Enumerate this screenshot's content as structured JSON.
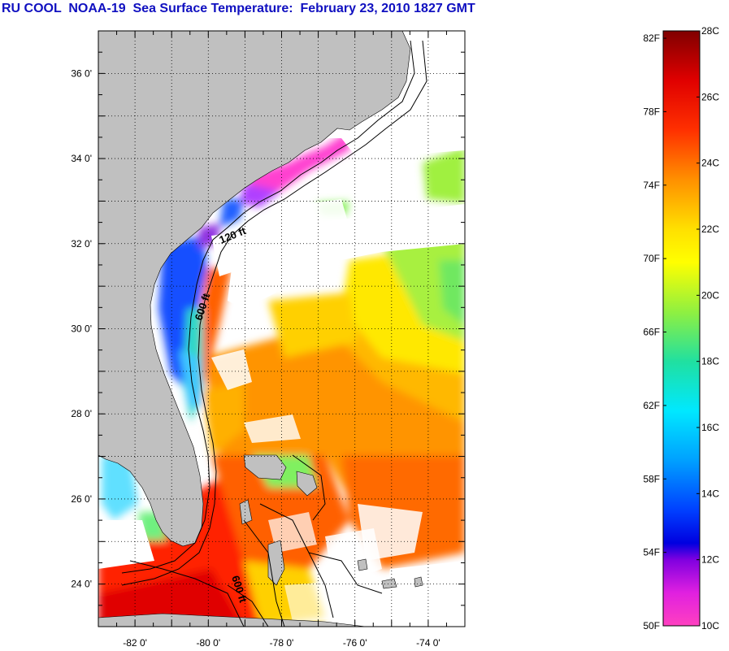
{
  "title": "RU COOL  NOAA-19  Sea Surface Temperature:  February 23, 2010 1827 GMT",
  "map": {
    "lon_range": [
      -83,
      -73
    ],
    "lat_range": [
      23,
      37
    ],
    "lat_ticks": [
      {
        "value": 36,
        "label": "36 0'"
      },
      {
        "value": 34,
        "label": "34 0'"
      },
      {
        "value": 32,
        "label": "32 0'"
      },
      {
        "value": 30,
        "label": "30 0'"
      },
      {
        "value": 28,
        "label": "28 0'"
      },
      {
        "value": 26,
        "label": "26 0'"
      },
      {
        "value": 24,
        "label": "24 0'"
      }
    ],
    "lon_ticks": [
      {
        "value": -82,
        "label": "-82 0'"
      },
      {
        "value": -80,
        "label": "-80 0'"
      },
      {
        "value": -78,
        "label": "-78 0'"
      },
      {
        "value": -76,
        "label": "-76 0'"
      },
      {
        "value": -74,
        "label": "-74 0'"
      }
    ],
    "contour_labels": [
      "120 ft",
      "600 ft",
      "600 ft"
    ],
    "land_color": "#c0c0c0",
    "cloud_color": "#ffffff"
  },
  "colorbar": {
    "fahrenheit_labels": [
      "82F",
      "78F",
      "74F",
      "70F",
      "66F",
      "62F",
      "58F",
      "54F",
      "50F"
    ],
    "celsius_labels": [
      "28C",
      "26C",
      "24C",
      "22C",
      "20C",
      "18C",
      "16C",
      "14C",
      "12C",
      "10C"
    ],
    "range_c": [
      10,
      28
    ],
    "colors": [
      {
        "c": 28,
        "color": "#800000"
      },
      {
        "c": 26.5,
        "color": "#e00000"
      },
      {
        "c": 25,
        "color": "#ff3000"
      },
      {
        "c": 23.5,
        "color": "#ff9000"
      },
      {
        "c": 22,
        "color": "#ffe000"
      },
      {
        "c": 21,
        "color": "#ffff00"
      },
      {
        "c": 19.5,
        "color": "#90f040"
      },
      {
        "c": 18,
        "color": "#20e0a0"
      },
      {
        "c": 16.5,
        "color": "#00e8ff"
      },
      {
        "c": 15,
        "color": "#00a0ff"
      },
      {
        "c": 13.5,
        "color": "#0040ff"
      },
      {
        "c": 12.5,
        "color": "#0000e0"
      },
      {
        "c": 12,
        "color": "#8000e0"
      },
      {
        "c": 11,
        "color": "#e020e0"
      },
      {
        "c": 10,
        "color": "#ff40c0"
      }
    ]
  }
}
